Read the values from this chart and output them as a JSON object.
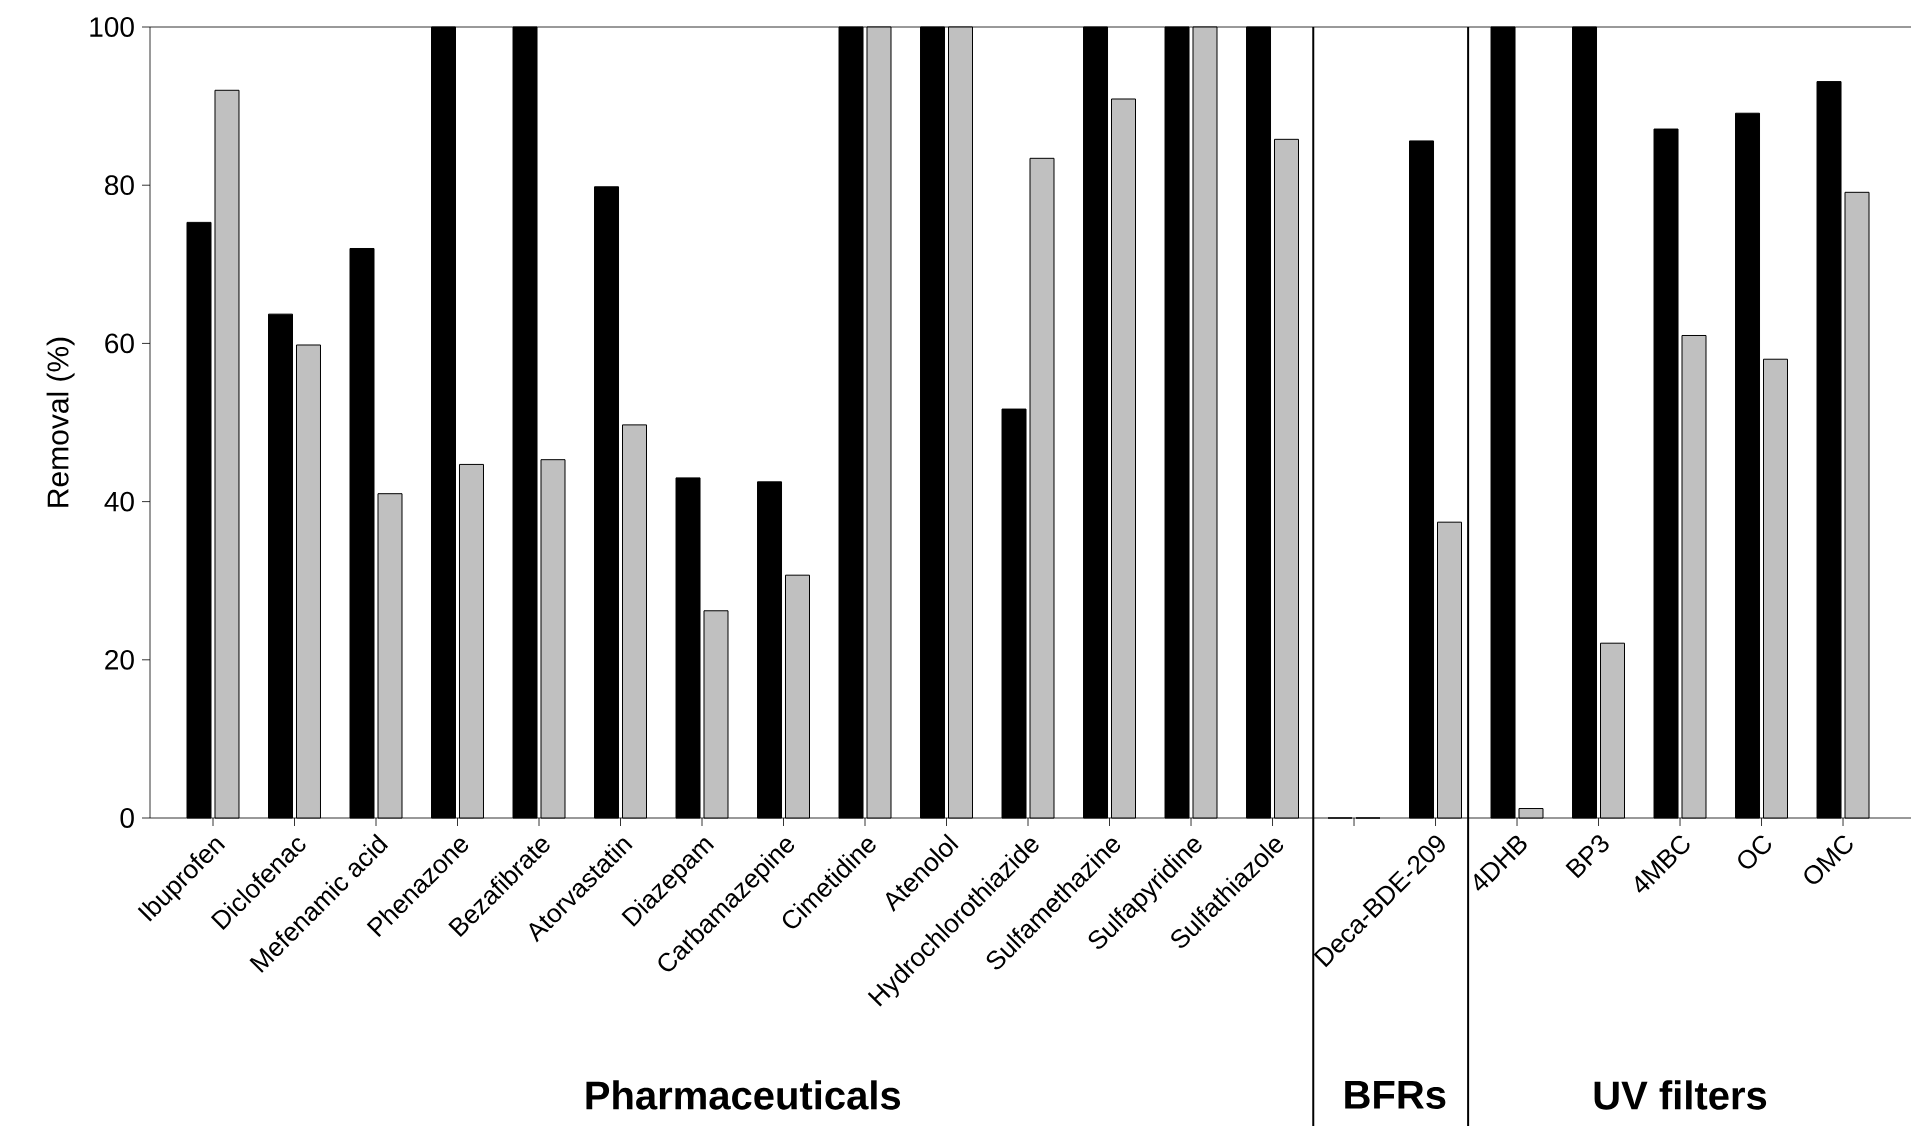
{
  "chart_data": {
    "type": "bar",
    "ylabel": "Removal (%)",
    "categories": [
      "Ibuprofen",
      "Diclofenac",
      "Mefenamic acid",
      "Phenazone",
      "Bezafibrate",
      "Atorvastatin",
      "Diazepam",
      "Carbamazepine",
      "Cimetidine",
      "Atenolol",
      "Hydrochlorothiazide",
      "Sulfamethazine",
      "Sulfapyridine",
      "Sulfathiazole",
      null,
      "Deca-BDE-209",
      "4DHB",
      "BP3",
      "4MBC",
      "OC",
      "OMC"
    ],
    "series": [
      {
        "color": "#000000",
        "values": [
          75.3,
          63.7,
          72,
          100,
          100,
          79.8,
          43,
          42.5,
          100,
          100,
          51.7,
          100,
          100,
          100,
          0,
          85.6,
          100,
          100,
          87.1,
          89.1,
          93.1
        ]
      },
      {
        "color": "#c0c0c0",
        "values": [
          92,
          59.8,
          41,
          44.7,
          45.3,
          49.7,
          26.2,
          30.7,
          100,
          100,
          83.4,
          90.9,
          100,
          85.8,
          0,
          37.4,
          1.2,
          22.1,
          61,
          58,
          79.1
        ]
      }
    ],
    "ylim": [
      0,
      100
    ],
    "yticks": [
      0,
      20,
      40,
      60,
      80,
      100
    ],
    "annotations": [
      "Pharmaceuticals",
      "BFRs",
      "UV filters"
    ]
  }
}
